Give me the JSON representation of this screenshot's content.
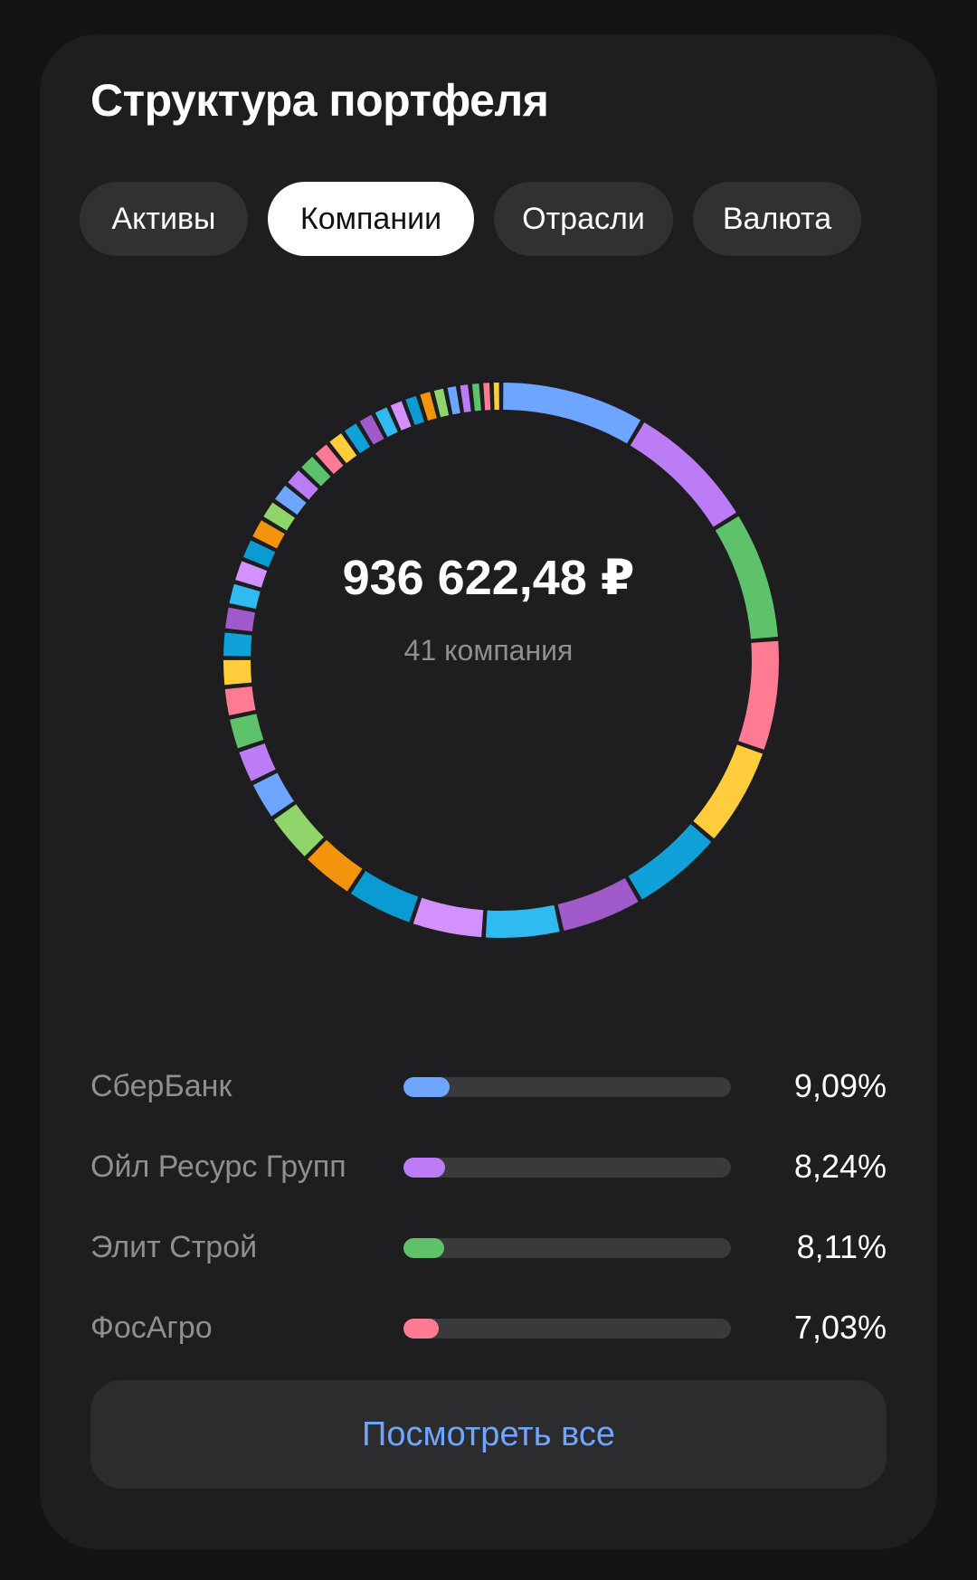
{
  "title": "Структура портфеля",
  "tabs": [
    {
      "label": "Активы",
      "active": false
    },
    {
      "label": "Компании",
      "active": true
    },
    {
      "label": "Отрасли",
      "active": false
    },
    {
      "label": "Валюта",
      "active": false
    }
  ],
  "summary": {
    "amount": "936 622,48 ₽",
    "companies_count": "41 компания"
  },
  "top_companies": [
    {
      "name": "СберБанк",
      "percent_label": "9,09%",
      "share": 9.09,
      "color": "#6ea6ff"
    },
    {
      "name": "Ойл Ресурс Групп",
      "percent_label": "8,24%",
      "share": 8.24,
      "color": "#bc7cf5"
    },
    {
      "name": "Элит Строй",
      "percent_label": "8,11%",
      "share": 8.11,
      "color": "#5ec26a"
    },
    {
      "name": "ФосАгро",
      "percent_label": "7,03%",
      "share": 7.03,
      "color": "#ff7a93"
    }
  ],
  "chart_data": {
    "type": "pie",
    "variant": "donut",
    "segment_count": 41,
    "colors": [
      "#6ea6ff",
      "#bc7cf5",
      "#5ec26a",
      "#ff7a93",
      "#ffcd3c",
      "#0fa1d8",
      "#a05ac9",
      "#2fbaf0",
      "#d291ff",
      "#0a9bd2",
      "#f4930c",
      "#8fd56b",
      "#6ea6ff",
      "#bc7cf5",
      "#5ec26a",
      "#ff7a93",
      "#ffcd3c",
      "#0fa1d8",
      "#a05ac9",
      "#2fbaf0",
      "#d291ff",
      "#0a9bd2",
      "#f4930c",
      "#8fd56b",
      "#6ea6ff",
      "#bc7cf5",
      "#5ec26a",
      "#ff7a93",
      "#ffcd3c",
      "#0fa1d8",
      "#a05ac9",
      "#2fbaf0",
      "#d291ff",
      "#0a9bd2",
      "#f4930c",
      "#8fd56b",
      "#6ea6ff",
      "#bc7cf5",
      "#5ec26a",
      "#ff7a93",
      "#ffcd3c"
    ],
    "values": [
      9.09,
      8.24,
      8.11,
      7.03,
      6.29,
      5.81,
      5.18,
      4.83,
      4.54,
      4.25,
      3.39,
      3.19,
      2.49,
      2.18,
      2.09,
      1.89,
      1.79,
      1.69,
      1.56,
      1.48,
      1.48,
      1.39,
      1.39,
      1.29,
      1.29,
      1.24,
      1.19,
      1.14,
      1.14,
      1.09,
      1.09,
      1.04,
      0.99,
      0.94,
      0.89,
      0.84,
      0.79,
      0.74,
      0.69,
      0.64,
      0.59
    ]
  },
  "view_all_label": "Посмотреть все"
}
